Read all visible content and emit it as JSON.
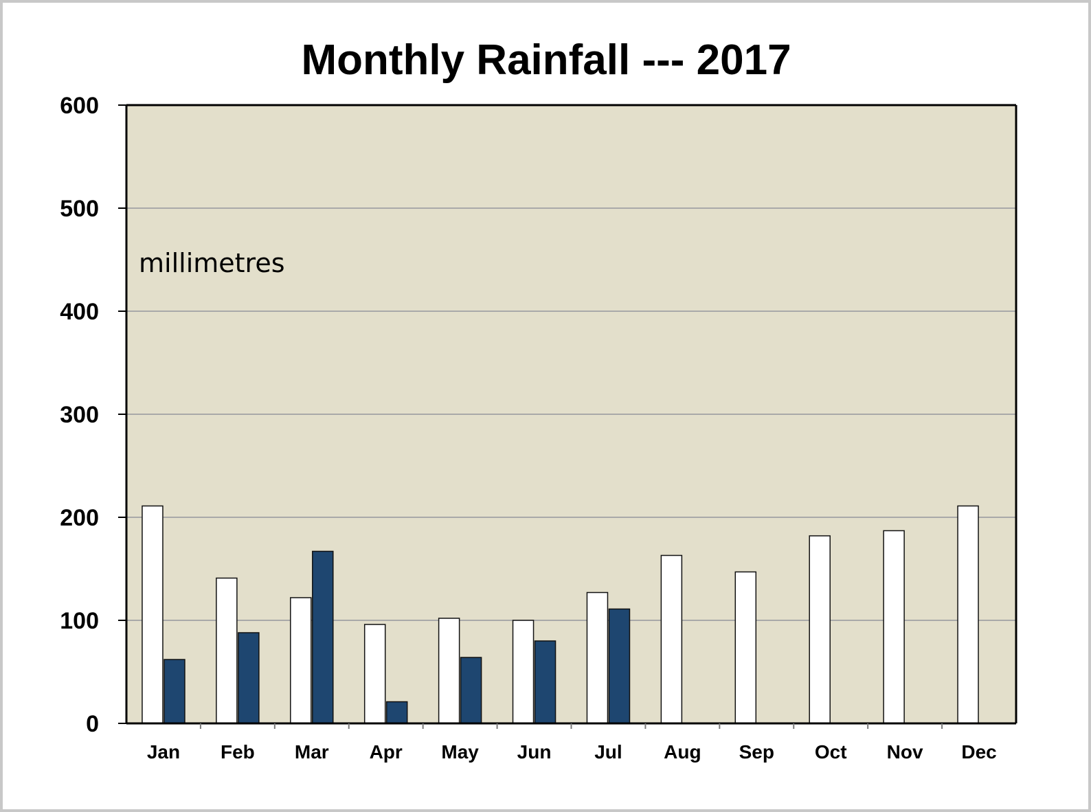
{
  "chart_data": {
    "type": "bar",
    "title": "Monthly Rainfall --- 2017",
    "annotation": "millimetres",
    "categories": [
      "Jan",
      "Feb",
      "Mar",
      "Apr",
      "May",
      "Jun",
      "Jul",
      "Aug",
      "Sep",
      "Oct",
      "Nov",
      "Dec"
    ],
    "series": [
      {
        "values": [
          211,
          141,
          122,
          96,
          102,
          100,
          127,
          163,
          147,
          182,
          187,
          211
        ]
      },
      {
        "values": [
          62,
          88,
          167,
          21,
          64,
          80,
          111,
          null,
          null,
          null,
          null,
          null
        ]
      }
    ],
    "ylim": [
      0,
      600
    ],
    "yticks": [
      0,
      100,
      200,
      300,
      400,
      500,
      600
    ],
    "grid": true,
    "legend": "none",
    "colors": {
      "plot_background": "#e3dfcb",
      "series_0": "#ffffff",
      "series_1": "#1e4670",
      "gridline": "#a9a9a9",
      "frame": "#c8c8c8"
    }
  }
}
